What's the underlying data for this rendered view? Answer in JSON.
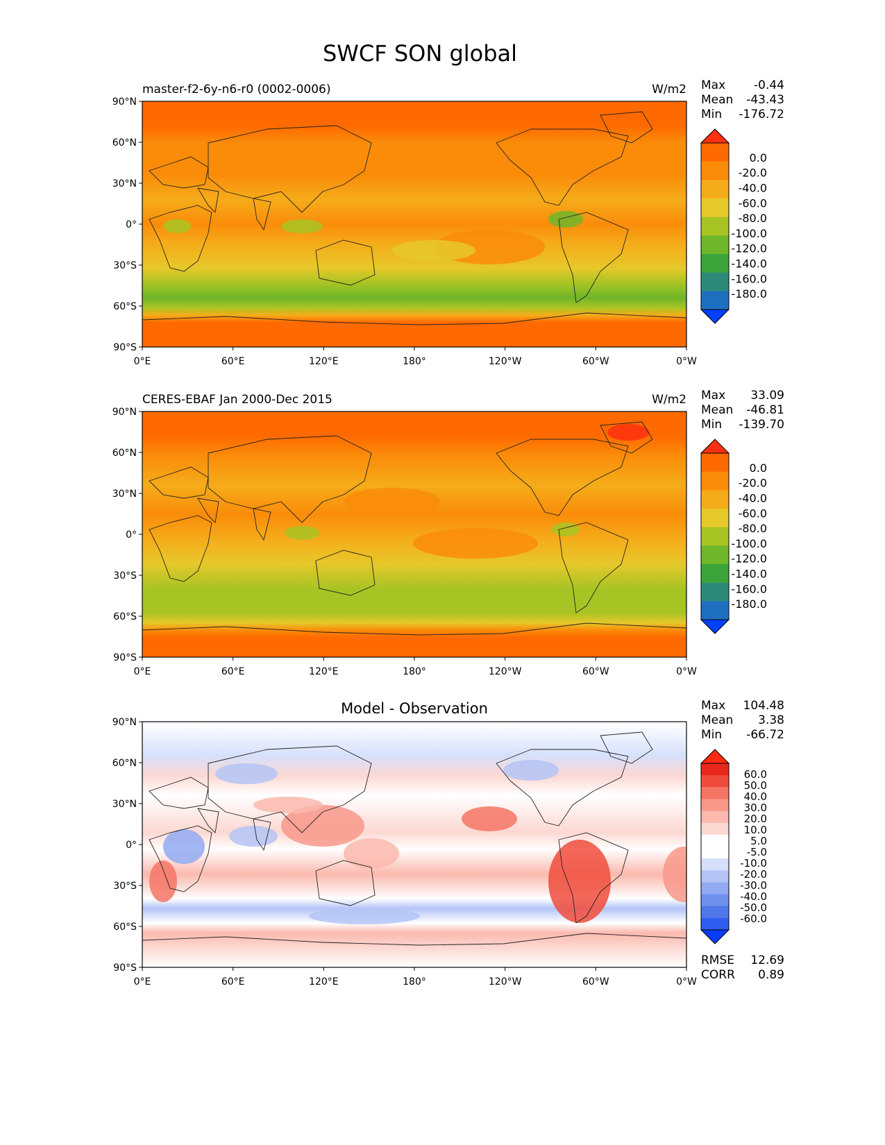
{
  "figure": {
    "title": "SWCF SON global"
  },
  "colors": {
    "absolute_levels": [
      "#0040ff",
      "#1f6fc0",
      "#2e8a78",
      "#3aa43a",
      "#6fb62a",
      "#a8c424",
      "#e6c82a",
      "#f5ac1a",
      "#fa8c0a",
      "#ff6a00",
      "#ff3010"
    ],
    "diff_levels": [
      "#0a3cff",
      "#2e5df0",
      "#5077e8",
      "#7090ee",
      "#92aaf2",
      "#b4c4f6",
      "#d6e0fb",
      "#ffffff",
      "#ffffff",
      "#fcd8d2",
      "#fbb9ae",
      "#f89889",
      "#f57565",
      "#f04c3c",
      "#e8281c",
      "#ff2a10"
    ],
    "land_outline": "#222222"
  },
  "chart_data": [
    {
      "type": "heatmap",
      "panel": "model",
      "left_title": "master-f2-6y-n6-r0 (0002-0006)",
      "center_title": "",
      "units": "W/m2",
      "stats": {
        "max_label": "Max",
        "max": "-0.44",
        "mean_label": "Mean",
        "mean": "-43.43",
        "min_label": "Min",
        "min": "-176.72"
      },
      "colorbar_ticks": [
        "0.0",
        "-20.0",
        "-40.0",
        "-60.0",
        "-80.0",
        "-100.0",
        "-120.0",
        "-140.0",
        "-160.0",
        "-180.0"
      ],
      "x_ticks": [
        "0°E",
        "60°E",
        "120°E",
        "180°",
        "120°W",
        "60°W",
        "0°W"
      ],
      "y_ticks": [
        "90°N",
        "60°N",
        "30°N",
        "0°",
        "30°S",
        "60°S",
        "90°S"
      ],
      "zonal_profile": {
        "lat": [
          90,
          75,
          60,
          45,
          30,
          15,
          0,
          -15,
          -30,
          -45,
          -55,
          -65,
          -75,
          -90
        ],
        "value": [
          -15,
          -25,
          -40,
          -45,
          -30,
          -35,
          -55,
          -40,
          -35,
          -80,
          -100,
          -15,
          -10,
          -10
        ]
      }
    },
    {
      "type": "heatmap",
      "panel": "observation",
      "left_title": "CERES-EBAF Jan 2000-Dec 2015",
      "center_title": "",
      "units": "W/m2",
      "stats": {
        "max_label": "Max",
        "max": "33.09",
        "mean_label": "Mean",
        "mean": "-46.81",
        "min_label": "Min",
        "min": "-139.70"
      },
      "colorbar_ticks": [
        "0.0",
        "-20.0",
        "-40.0",
        "-60.0",
        "-80.0",
        "-100.0",
        "-120.0",
        "-140.0",
        "-160.0",
        "-180.0"
      ],
      "x_ticks": [
        "0°E",
        "60°E",
        "120°E",
        "180°",
        "120°W",
        "60°W",
        "0°W"
      ],
      "y_ticks": [
        "90°N",
        "60°N",
        "30°N",
        "0°",
        "30°S",
        "60°S",
        "90°S"
      ],
      "zonal_profile": {
        "lat": [
          90,
          75,
          60,
          45,
          30,
          15,
          0,
          -15,
          -30,
          -45,
          -55,
          -65,
          -75,
          -90
        ],
        "value": [
          -15,
          -25,
          -40,
          -45,
          -35,
          -40,
          -55,
          -45,
          -50,
          -80,
          -90,
          -15,
          -10,
          -10
        ]
      }
    },
    {
      "type": "heatmap",
      "panel": "difference",
      "left_title": "",
      "center_title": "Model - Observation",
      "units": "",
      "stats": {
        "max_label": "Max",
        "max": "104.48",
        "mean_label": "Mean",
        "mean": "3.38",
        "min_label": "Min",
        "min": "-66.72"
      },
      "colorbar_ticks": [
        "60.0",
        "50.0",
        "40.0",
        "30.0",
        "20.0",
        "10.0",
        "5.0",
        "-5.0",
        "-10.0",
        "-20.0",
        "-30.0",
        "-40.0",
        "-50.0",
        "-60.0"
      ],
      "x_ticks": [
        "0°E",
        "60°E",
        "120°E",
        "180°",
        "120°W",
        "60°W",
        "0°W"
      ],
      "y_ticks": [
        "90°N",
        "60°N",
        "30°N",
        "0°",
        "30°S",
        "60°S",
        "90°S"
      ],
      "metrics": {
        "rmse_label": "RMSE",
        "rmse": "12.69",
        "corr_label": "CORR",
        "corr": "0.89"
      }
    }
  ]
}
